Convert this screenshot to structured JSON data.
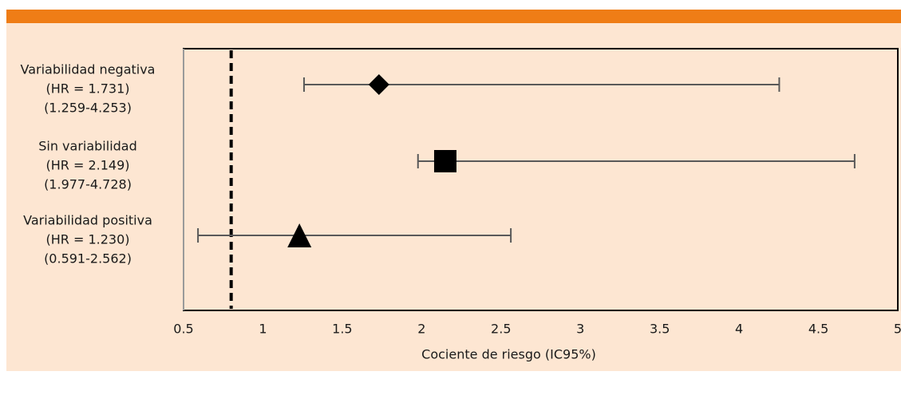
{
  "colors": {
    "accent_bar": "#ef7d16",
    "panel_background": "#fde6d2",
    "plot_background": "#fde6d2",
    "error_bar": "#595959",
    "marker": "#000000",
    "reference_line": "#000000"
  },
  "chart_data": {
    "type": "scatter",
    "subtype": "forest-plot",
    "title": "",
    "xlabel": "Cociente de riesgo (IC95%)",
    "ylabel": "",
    "xlim": [
      0.5,
      5
    ],
    "xticks": [
      0.5,
      1,
      1.5,
      2,
      2.5,
      3,
      3.5,
      4,
      4.5,
      5
    ],
    "xtick_labels": [
      "0.5",
      "1",
      "1.5",
      "2",
      "2.5",
      "3",
      "3.5",
      "4",
      "4.5",
      "5"
    ],
    "grid": false,
    "legend": "none",
    "reference_line_x": 0.8,
    "reference_line_style": "dashed",
    "series": [
      {
        "label_lines": [
          "Variabilidad negativa",
          "(HR = 1.731)",
          "(1.259-4.253)"
        ],
        "hr": 1.731,
        "ci": [
          1.259,
          4.253
        ],
        "marker": "diamond"
      },
      {
        "label_lines": [
          "Sin variabilidad",
          "(HR = 2.149)",
          "(1.977-4.728)"
        ],
        "hr": 2.149,
        "ci": [
          1.977,
          4.728
        ],
        "marker": "square"
      },
      {
        "label_lines": [
          "Variabilidad positiva",
          "(HR = 1.230)",
          "(0.591-2.562)"
        ],
        "hr": 1.23,
        "ci": [
          0.591,
          2.562
        ],
        "marker": "triangle"
      }
    ]
  }
}
